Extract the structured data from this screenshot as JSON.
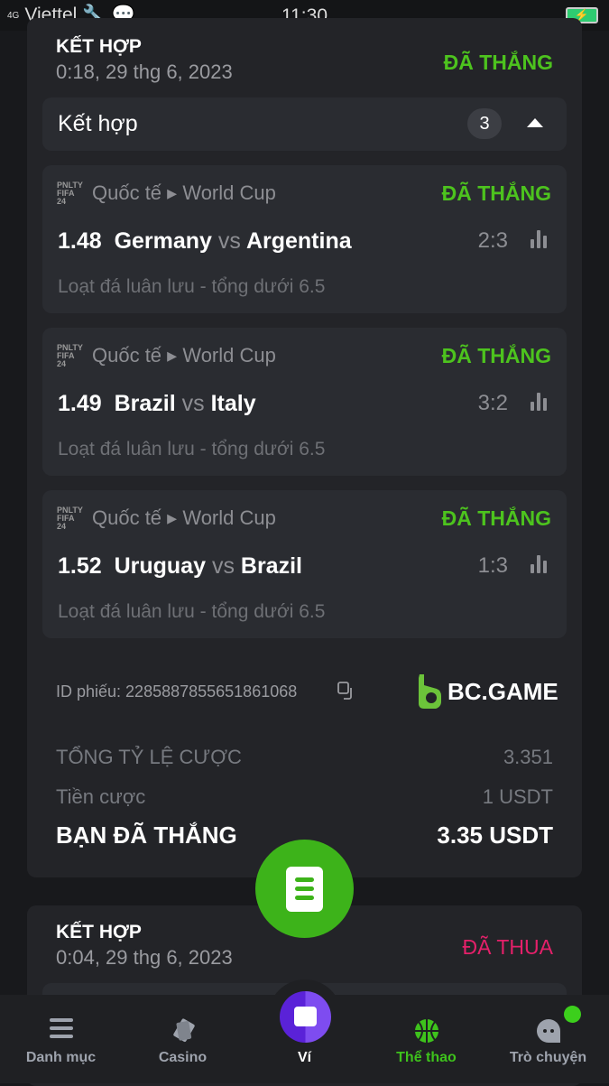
{
  "status_bar": {
    "network": "4G",
    "carrier": "Viettel",
    "time": "11:30"
  },
  "bets": [
    {
      "type": "KẾT HỢP",
      "date": "0:18, 29 thg 6, 2023",
      "status": "ĐÃ THẮNG",
      "combo": {
        "label": "Kết hợp",
        "count": "3"
      },
      "selections": [
        {
          "category": "Quốc tế",
          "league": "World Cup",
          "status": "ĐÃ THẮNG",
          "odds": "1.48",
          "home": "Germany",
          "vs": "vs",
          "away": "Argentina",
          "score": "2:3",
          "market": "Loạt đá luân lưu - tổng dưới 6.5"
        },
        {
          "category": "Quốc tế",
          "league": "World Cup",
          "status": "ĐÃ THẮNG",
          "odds": "1.49",
          "home": "Brazil",
          "vs": "vs",
          "away": "Italy",
          "score": "3:2",
          "market": "Loạt đá luân lưu - tổng dưới 6.5"
        },
        {
          "category": "Quốc tế",
          "league": "World Cup",
          "status": "ĐÃ THẮNG",
          "odds": "1.52",
          "home": "Uruguay",
          "vs": "vs",
          "away": "Brazil",
          "score": "1:3",
          "market": "Loạt đá luân lưu - tổng dưới 6.5"
        }
      ],
      "ticket_id": "ID phiếu: 2285887855651861068",
      "brand": "BC.GAME",
      "total_odds_label": "TỔNG TỶ LỆ CƯỢC",
      "total_odds": "3.351",
      "stake_label": "Tiền cược",
      "stake": "1 USDT",
      "win_label": "BẠN ĐÃ THẮNG",
      "win": "3.35 USDT"
    },
    {
      "type": "KẾT HỢP",
      "date": "0:04, 29 thg 6, 2023",
      "status": "ĐÃ THUA"
    }
  ],
  "game_logo": "PENALTY FIFA 24",
  "nav": [
    {
      "label": "Danh mục"
    },
    {
      "label": "Casino"
    },
    {
      "label": "Ví"
    },
    {
      "label": "Thể thao",
      "active": true
    },
    {
      "label": "Trò chuyện"
    }
  ],
  "colors": {
    "win": "#4dc31e",
    "lose": "#e5206a",
    "wallet": "#6a35e8",
    "accent": "#3db31a"
  }
}
